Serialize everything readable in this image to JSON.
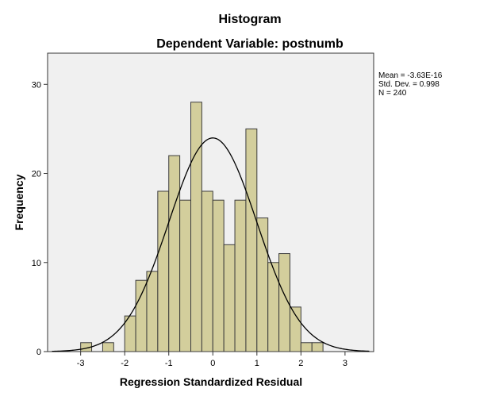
{
  "chart_data": {
    "type": "bar",
    "title": "Histogram",
    "subtitle": "Dependent Variable: postnumb",
    "xlabel": "Regression Standardized Residual",
    "ylabel": "Frequency",
    "xlim": [
      -3.75,
      3.65
    ],
    "ylim": [
      0,
      33.5
    ],
    "x_ticks": [
      -3,
      -2,
      -1,
      0,
      1,
      2,
      3
    ],
    "y_ticks": [
      0,
      10,
      20,
      30
    ],
    "bin_width": 0.25,
    "bins": [
      {
        "start": -3.0,
        "count": 1
      },
      {
        "start": -2.5,
        "count": 1
      },
      {
        "start": -2.0,
        "count": 4
      },
      {
        "start": -1.75,
        "count": 8
      },
      {
        "start": -1.5,
        "count": 9
      },
      {
        "start": -1.25,
        "count": 18
      },
      {
        "start": -1.0,
        "count": 22
      },
      {
        "start": -0.75,
        "count": 17
      },
      {
        "start": -0.5,
        "count": 28
      },
      {
        "start": -0.25,
        "count": 18
      },
      {
        "start": 0.0,
        "count": 17
      },
      {
        "start": 0.25,
        "count": 12
      },
      {
        "start": 0.5,
        "count": 17
      },
      {
        "start": 0.75,
        "count": 25
      },
      {
        "start": 1.0,
        "count": 15
      },
      {
        "start": 1.25,
        "count": 10
      },
      {
        "start": 1.5,
        "count": 11
      },
      {
        "start": 1.75,
        "count": 5
      },
      {
        "start": 2.0,
        "count": 1
      },
      {
        "start": 2.25,
        "count": 1
      }
    ],
    "normal_curve": {
      "mean": 0,
      "sd": 0.998,
      "n": 240
    },
    "stats": [
      "Mean = -3.63E-16",
      "Std. Dev. = 0.998",
      "N = 240"
    ],
    "legend_position": "right",
    "grid": false,
    "colors": {
      "bar_fill": "#d3ce9c",
      "bar_stroke": "#3c3c3c",
      "plot_background": "#f0f0f0",
      "curve": "#000000"
    }
  }
}
